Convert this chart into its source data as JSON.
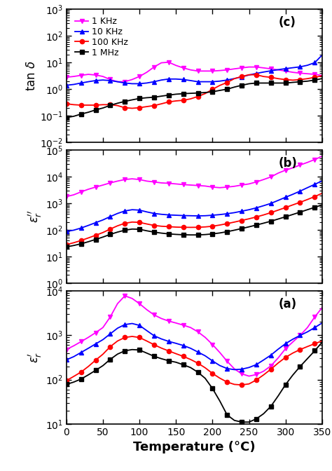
{
  "temperatures": [
    0,
    10,
    20,
    30,
    40,
    50,
    60,
    70,
    80,
    90,
    100,
    110,
    120,
    130,
    140,
    150,
    160,
    170,
    180,
    190,
    200,
    210,
    220,
    230,
    240,
    250,
    260,
    270,
    280,
    290,
    300,
    310,
    320,
    330,
    340,
    350
  ],
  "panel_a": {
    "label": "(a)",
    "ylabel": "$\\varepsilon_r'$",
    "ylim": [
      10,
      10000
    ],
    "1KHz": [
      480,
      580,
      720,
      900,
      1150,
      1500,
      2600,
      5200,
      7800,
      6800,
      5200,
      3800,
      2900,
      2400,
      2100,
      1900,
      1700,
      1500,
      1200,
      900,
      620,
      410,
      260,
      175,
      135,
      120,
      130,
      155,
      205,
      310,
      500,
      710,
      1000,
      1500,
      2600,
      4200
    ],
    "10KHz": [
      280,
      330,
      410,
      510,
      640,
      800,
      1080,
      1450,
      1750,
      1850,
      1680,
      1280,
      980,
      830,
      730,
      660,
      590,
      510,
      420,
      345,
      265,
      208,
      178,
      168,
      172,
      188,
      218,
      278,
      358,
      488,
      648,
      818,
      998,
      1198,
      1498,
      1898
    ],
    "100KHz": [
      95,
      118,
      148,
      198,
      275,
      375,
      555,
      745,
      895,
      945,
      895,
      745,
      615,
      515,
      445,
      385,
      335,
      285,
      235,
      185,
      138,
      108,
      88,
      78,
      76,
      80,
      98,
      128,
      172,
      238,
      318,
      398,
      478,
      558,
      648,
      748
    ],
    "1MHz": [
      78,
      88,
      103,
      128,
      162,
      207,
      287,
      377,
      447,
      477,
      467,
      397,
      337,
      297,
      267,
      247,
      217,
      187,
      147,
      107,
      63,
      33,
      16,
      12,
      11,
      11,
      13,
      17,
      25,
      43,
      77,
      127,
      198,
      298,
      448,
      698
    ]
  },
  "panel_b": {
    "label": "(b)",
    "ylabel": "$\\varepsilon_r''$",
    "ylim": [
      1,
      100000
    ],
    "1KHz": [
      1800,
      2100,
      2700,
      3400,
      4100,
      4900,
      5900,
      6900,
      7900,
      8400,
      7900,
      6900,
      6400,
      5900,
      5700,
      5400,
      5100,
      4900,
      4700,
      4500,
      4100,
      3900,
      4100,
      4400,
      4900,
      5400,
      6400,
      7900,
      9900,
      13800,
      17800,
      21800,
      27800,
      34800,
      44800,
      59000
    ],
    "10KHz": [
      88,
      98,
      118,
      148,
      188,
      238,
      318,
      418,
      518,
      578,
      558,
      478,
      418,
      388,
      368,
      358,
      348,
      343,
      338,
      343,
      358,
      378,
      408,
      448,
      508,
      578,
      678,
      818,
      998,
      1298,
      1698,
      2198,
      2898,
      3898,
      5198,
      6998
    ],
    "100KHz": [
      28,
      33,
      40,
      50,
      63,
      80,
      108,
      143,
      178,
      198,
      193,
      168,
      148,
      138,
      133,
      128,
      126,
      125,
      126,
      130,
      138,
      153,
      173,
      198,
      228,
      263,
      308,
      368,
      448,
      558,
      698,
      878,
      1098,
      1398,
      1798,
      2398
    ],
    "1MHz": [
      23,
      26,
      30,
      36,
      44,
      54,
      68,
      83,
      98,
      108,
      106,
      93,
      83,
      76,
      71,
      68,
      66,
      65,
      65,
      67,
      71,
      77,
      86,
      98,
      113,
      131,
      153,
      180,
      213,
      258,
      313,
      383,
      468,
      578,
      708,
      878
    ]
  },
  "panel_c": {
    "label": "(c)",
    "ylabel": "tan $\\delta$",
    "ylim": [
      0.01,
      1000
    ],
    "1KHz": [
      2.8,
      3.0,
      3.3,
      3.6,
      3.4,
      3.0,
      2.3,
      1.9,
      1.9,
      2.3,
      3.0,
      4.3,
      6.8,
      9.8,
      10.3,
      7.8,
      6.3,
      5.3,
      4.8,
      4.8,
      4.8,
      5.0,
      5.3,
      5.8,
      6.3,
      6.8,
      6.8,
      6.3,
      5.8,
      5.3,
      4.8,
      4.3,
      4.0,
      3.8,
      3.6,
      3.3
    ],
    "10KHz": [
      1.4,
      1.5,
      1.7,
      1.9,
      2.1,
      2.2,
      2.1,
      1.9,
      1.7,
      1.6,
      1.6,
      1.7,
      1.9,
      2.2,
      2.4,
      2.4,
      2.3,
      2.1,
      1.9,
      1.9,
      1.9,
      2.0,
      2.2,
      2.5,
      2.9,
      3.4,
      3.9,
      4.4,
      4.9,
      5.4,
      5.9,
      6.4,
      6.9,
      7.9,
      9.9,
      19.0
    ],
    "100KHz": [
      0.28,
      0.26,
      0.25,
      0.25,
      0.25,
      0.26,
      0.26,
      0.24,
      0.2,
      0.19,
      0.2,
      0.22,
      0.24,
      0.28,
      0.33,
      0.36,
      0.38,
      0.43,
      0.53,
      0.68,
      0.98,
      1.38,
      1.78,
      2.48,
      2.98,
      3.48,
      3.48,
      2.98,
      2.78,
      2.48,
      2.28,
      2.18,
      2.28,
      2.48,
      2.78,
      3.18
    ],
    "1MHz": [
      0.085,
      0.095,
      0.115,
      0.135,
      0.165,
      0.195,
      0.245,
      0.295,
      0.345,
      0.395,
      0.445,
      0.475,
      0.495,
      0.545,
      0.595,
      0.645,
      0.675,
      0.695,
      0.715,
      0.745,
      0.795,
      0.895,
      0.995,
      1.195,
      1.395,
      1.595,
      1.695,
      1.695,
      1.695,
      1.695,
      1.695,
      1.795,
      1.895,
      1.995,
      2.195,
      2.495
    ]
  },
  "colors": {
    "1KHz": "#FF00FF",
    "10KHz": "#0000FF",
    "100KHz": "#FF0000",
    "1MHz": "#000000"
  },
  "legend_labels": [
    "1 KHz",
    "10 KHz",
    "100 KHz",
    "1 MHz"
  ],
  "legend_keys": [
    "1KHz",
    "10KHz",
    "100KHz",
    "1MHz"
  ],
  "markers": {
    "1KHz": "v",
    "10KHz": "^",
    "100KHz": "o",
    "1MHz": "s"
  },
  "xlabel": "Temperature (°C)",
  "xlim": [
    0,
    350
  ]
}
